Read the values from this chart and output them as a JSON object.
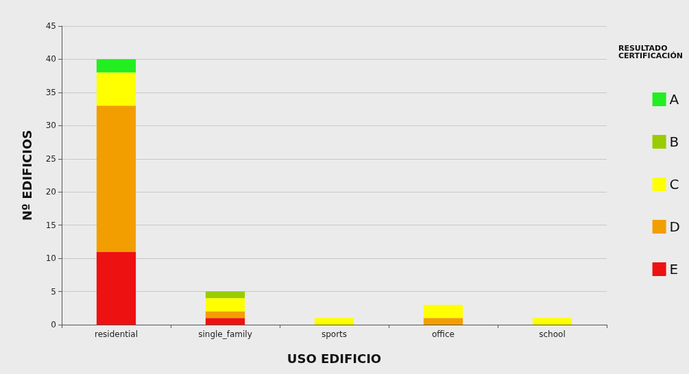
{
  "chart_data": {
    "type": "bar",
    "stacked": true,
    "xlabel": "USO EDIFICIO",
    "ylabel": "Nº EDIFICIOS",
    "legend_title": "RESULTADO CERTIFICACIÓN",
    "categories": [
      "residential",
      "single_family",
      "sports",
      "office",
      "school"
    ],
    "series": [
      {
        "name": "E",
        "color": "#ee1111",
        "values": [
          11,
          1,
          0,
          0,
          0
        ]
      },
      {
        "name": "D",
        "color": "#f29e00",
        "values": [
          22,
          1,
          0,
          1,
          0
        ]
      },
      {
        "name": "C",
        "color": "#ffff00",
        "values": [
          5,
          2,
          1,
          2,
          1
        ]
      },
      {
        "name": "B",
        "color": "#99cc00",
        "values": [
          0,
          1,
          0,
          0,
          0
        ]
      },
      {
        "name": "A",
        "color": "#22ee22",
        "values": [
          2,
          0,
          0,
          0,
          0
        ]
      }
    ],
    "ylim": [
      0,
      45
    ],
    "yticks": [
      0,
      5,
      10,
      15,
      20,
      25,
      30,
      35,
      40,
      45
    ],
    "grid": "y",
    "legend": "right"
  }
}
